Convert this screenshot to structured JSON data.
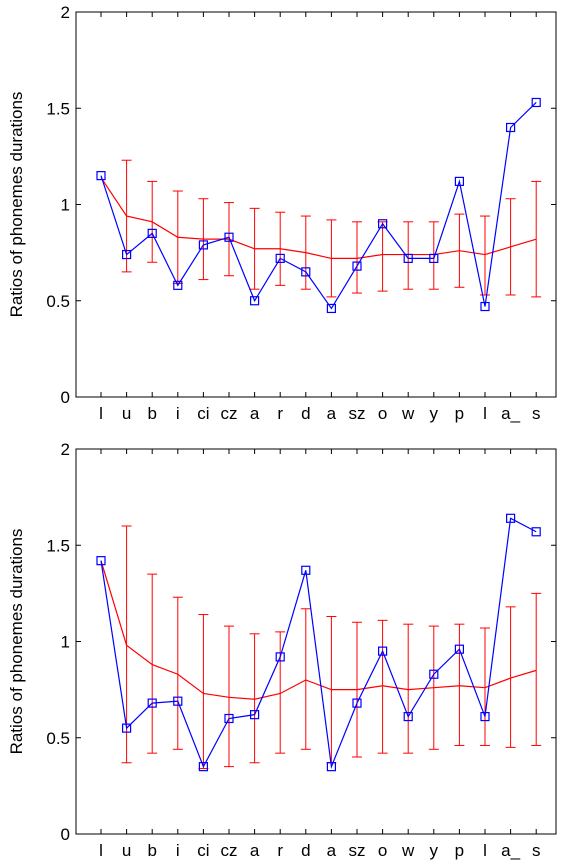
{
  "chart_data": [
    {
      "type": "line",
      "categories": [
        "l",
        "u",
        "b",
        "i",
        "ci",
        "cz",
        "a",
        "r",
        "d",
        "a",
        "sz",
        "o",
        "w",
        "y",
        "p",
        "l",
        "a_",
        "s"
      ],
      "ylabel": "Ratios of phonemes durations",
      "xlabel": "",
      "ylim": [
        0,
        2
      ],
      "yticks": [
        "0",
        "0.5",
        "1",
        "1.5",
        "2"
      ],
      "grid": false,
      "series": [
        {
          "color": "#0000ff",
          "marker": "square",
          "values": [
            1.15,
            0.74,
            0.85,
            0.58,
            0.79,
            0.83,
            0.5,
            0.72,
            0.65,
            0.46,
            0.68,
            0.9,
            0.72,
            0.72,
            1.12,
            0.47,
            1.4,
            1.53
          ]
        },
        {
          "color": "#ff0000",
          "values": [
            1.14,
            0.94,
            0.91,
            0.83,
            0.82,
            0.82,
            0.77,
            0.77,
            0.75,
            0.72,
            0.72,
            0.74,
            0.74,
            0.74,
            0.76,
            0.74,
            0.78,
            0.82
          ],
          "error_low": [
            1.14,
            0.65,
            0.7,
            0.59,
            0.61,
            0.63,
            0.56,
            0.58,
            0.56,
            0.52,
            0.54,
            0.55,
            0.56,
            0.56,
            0.57,
            0.53,
            0.53,
            0.52
          ],
          "error_high": [
            1.14,
            1.23,
            1.12,
            1.07,
            1.03,
            1.01,
            0.98,
            0.96,
            0.94,
            0.92,
            0.91,
            0.91,
            0.91,
            0.91,
            0.95,
            0.94,
            1.03,
            1.12
          ]
        }
      ]
    },
    {
      "type": "line",
      "categories": [
        "l",
        "u",
        "b",
        "i",
        "ci",
        "cz",
        "a",
        "r",
        "d",
        "a",
        "sz",
        "o",
        "w",
        "y",
        "p",
        "l",
        "a_",
        "s"
      ],
      "ylabel": "Ratios of phonemes durations",
      "xlabel": "",
      "ylim": [
        0,
        2
      ],
      "yticks": [
        "0",
        "0.5",
        "1",
        "1.5",
        "2"
      ],
      "grid": false,
      "series": [
        {
          "color": "#0000ff",
          "marker": "square",
          "values": [
            1.42,
            0.55,
            0.68,
            0.69,
            0.35,
            0.6,
            0.62,
            0.92,
            1.37,
            0.35,
            0.68,
            0.95,
            0.61,
            0.83,
            0.96,
            0.61,
            1.64,
            1.57
          ]
        },
        {
          "color": "#ff0000",
          "values": [
            1.42,
            0.98,
            0.88,
            0.83,
            0.73,
            0.71,
            0.7,
            0.73,
            0.8,
            0.75,
            0.75,
            0.77,
            0.75,
            0.76,
            0.77,
            0.76,
            0.81,
            0.85
          ],
          "error_low": [
            1.42,
            0.37,
            0.42,
            0.44,
            0.34,
            0.35,
            0.37,
            0.42,
            0.44,
            0.37,
            0.4,
            0.42,
            0.42,
            0.44,
            0.46,
            0.46,
            0.45,
            0.46
          ],
          "error_high": [
            1.42,
            1.6,
            1.35,
            1.23,
            1.14,
            1.08,
            1.04,
            1.05,
            1.17,
            1.13,
            1.1,
            1.11,
            1.09,
            1.08,
            1.09,
            1.07,
            1.18,
            1.25
          ]
        }
      ]
    }
  ]
}
